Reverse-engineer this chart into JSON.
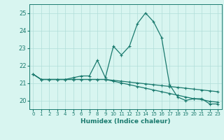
{
  "xlabel": "Humidex (Indice chaleur)",
  "x": [
    0,
    1,
    2,
    3,
    4,
    5,
    6,
    7,
    8,
    9,
    10,
    11,
    12,
    13,
    14,
    15,
    16,
    17,
    18,
    19,
    20,
    21,
    22,
    23
  ],
  "line1": [
    21.5,
    21.2,
    21.2,
    21.2,
    21.2,
    21.3,
    21.4,
    21.4,
    22.3,
    21.3,
    23.1,
    22.6,
    23.1,
    24.4,
    25.0,
    24.5,
    23.6,
    20.9,
    20.2,
    20.0,
    20.1,
    20.1,
    19.8,
    19.8
  ],
  "line2": [
    21.5,
    21.2,
    21.2,
    21.2,
    21.2,
    21.2,
    21.2,
    21.2,
    21.2,
    21.2,
    21.15,
    21.1,
    21.05,
    21.0,
    20.95,
    20.9,
    20.85,
    20.8,
    20.75,
    20.7,
    20.65,
    20.6,
    20.55,
    20.5
  ],
  "line3": [
    21.5,
    21.2,
    21.2,
    21.2,
    21.2,
    21.2,
    21.2,
    21.2,
    21.2,
    21.2,
    21.1,
    21.0,
    20.9,
    20.8,
    20.7,
    20.6,
    20.5,
    20.4,
    20.3,
    20.2,
    20.1,
    20.05,
    19.95,
    19.9
  ],
  "line_color": "#1a7a6e",
  "bg_color": "#d8f5f0",
  "grid_color": "#b0ddd8",
  "ylim": [
    19.5,
    25.5
  ],
  "yticks": [
    20,
    21,
    22,
    23,
    24,
    25
  ],
  "xlim": [
    -0.5,
    23.5
  ]
}
